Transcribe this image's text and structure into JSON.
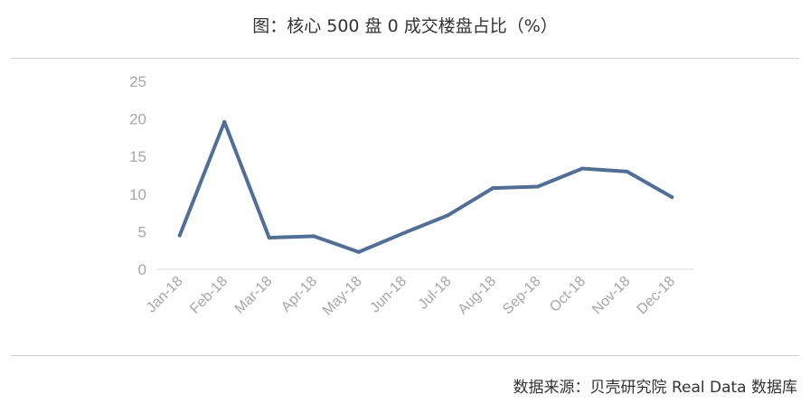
{
  "title": "图：核心 500 盘 0 成交楼盘占比（%）",
  "source": "数据来源：贝壳研究院 Real Data 数据库",
  "colors": {
    "line": "#4f6f9a",
    "axis": "#d9d9d9",
    "tick_text": "#a6a6a6"
  },
  "chart_data": {
    "type": "line",
    "categories": [
      "Jan-18",
      "Feb-18",
      "Mar-18",
      "Apr-18",
      "May-18",
      "Jun-18",
      "Jul-18",
      "Aug-18",
      "Sep-18",
      "Oct-18",
      "Nov-18",
      "Dec-18"
    ],
    "series": [
      {
        "values": [
          4.5,
          19.6,
          4.2,
          4.4,
          2.3,
          4.8,
          7.2,
          10.8,
          11.0,
          13.4,
          13.0,
          9.6
        ]
      }
    ],
    "yticks": [
      "0",
      "5",
      "10",
      "15",
      "20",
      "25"
    ],
    "ylim": [
      0,
      25
    ],
    "grid": false,
    "xlabel": "",
    "ylabel": ""
  }
}
